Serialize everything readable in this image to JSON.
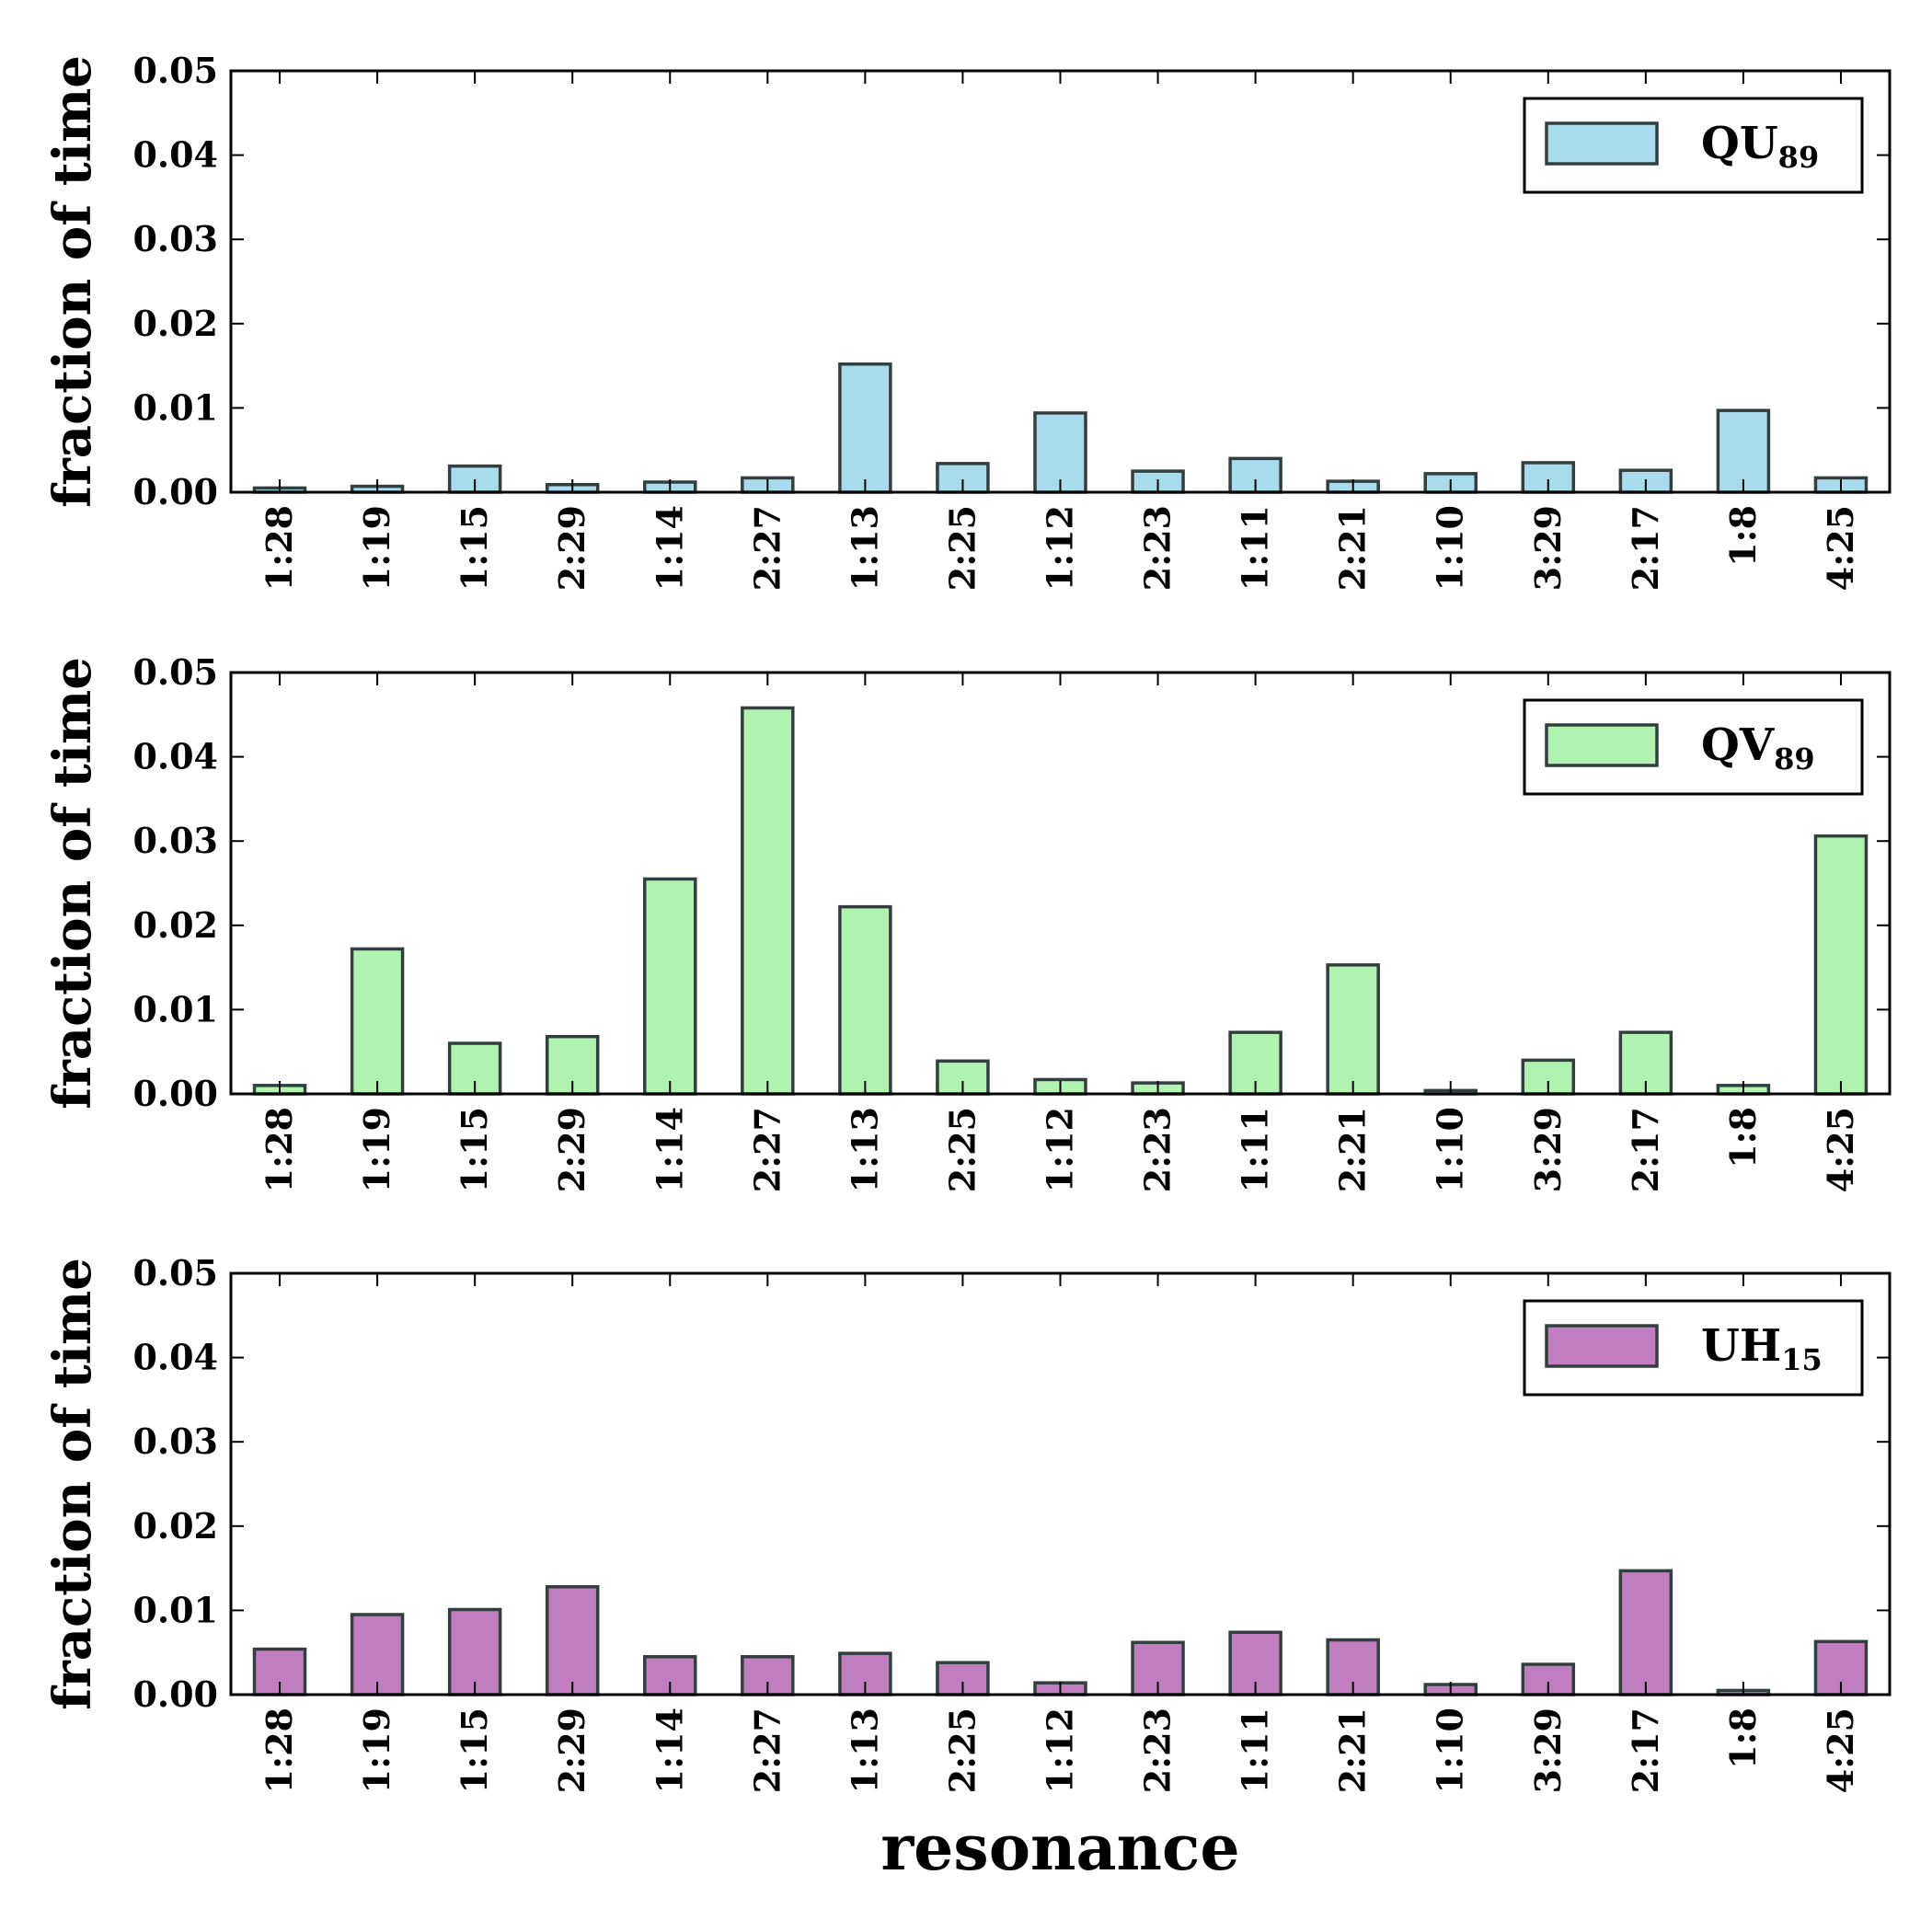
{
  "chart_data": [
    {
      "type": "bar",
      "categories": [
        "1:28",
        "1:19",
        "1:15",
        "2:29",
        "1:14",
        "2:27",
        "1:13",
        "2:25",
        "1:12",
        "2:23",
        "1:11",
        "2:21",
        "1:10",
        "3:29",
        "2:17",
        "1:8",
        "4:25"
      ],
      "series": [
        {
          "name": "QU89",
          "values": [
            0.0005,
            0.0007,
            0.0031,
            0.0009,
            0.0012,
            0.0017,
            0.0152,
            0.0034,
            0.0094,
            0.0025,
            0.004,
            0.0013,
            0.0022,
            0.0035,
            0.0026,
            0.0097,
            0.0017
          ]
        }
      ],
      "legend": {
        "main": "QU",
        "sub": "89"
      },
      "color": "#a8dced",
      "ylabel": "fraction of time",
      "ylim": [
        0,
        0.05
      ],
      "yticks": [
        "0.00",
        "0.01",
        "0.02",
        "0.03",
        "0.04",
        "0.05"
      ],
      "legend_position": "top-right"
    },
    {
      "type": "bar",
      "categories": [
        "1:28",
        "1:19",
        "1:15",
        "2:29",
        "1:14",
        "2:27",
        "1:13",
        "2:25",
        "1:12",
        "2:23",
        "1:11",
        "2:21",
        "1:10",
        "3:29",
        "2:17",
        "1:8",
        "4:25"
      ],
      "series": [
        {
          "name": "QV89",
          "values": [
            0.001,
            0.0172,
            0.006,
            0.0068,
            0.0255,
            0.0458,
            0.0222,
            0.0039,
            0.0017,
            0.0013,
            0.0073,
            0.0153,
            0.0004,
            0.004,
            0.0073,
            0.001,
            0.0306
          ]
        }
      ],
      "legend": {
        "main": "QV",
        "sub": "89"
      },
      "color": "#b0f2b0",
      "ylabel": "fraction of time",
      "ylim": [
        0,
        0.05
      ],
      "yticks": [
        "0.00",
        "0.01",
        "0.02",
        "0.03",
        "0.04",
        "0.05"
      ],
      "legend_position": "top-right"
    },
    {
      "type": "bar",
      "categories": [
        "1:28",
        "1:19",
        "1:15",
        "2:29",
        "1:14",
        "2:27",
        "1:13",
        "2:25",
        "1:12",
        "2:23",
        "1:11",
        "2:21",
        "1:10",
        "3:29",
        "2:17",
        "1:8",
        "4:25"
      ],
      "series": [
        {
          "name": "UH15",
          "values": [
            0.0054,
            0.0095,
            0.0101,
            0.0128,
            0.0045,
            0.0045,
            0.0049,
            0.0038,
            0.0014,
            0.0062,
            0.0074,
            0.0065,
            0.0012,
            0.0036,
            0.0147,
            0.0005,
            0.0063
          ]
        }
      ],
      "legend": {
        "main": "UH",
        "sub": "15"
      },
      "color": "#c07dbf",
      "ylabel": "fraction of time",
      "ylim": [
        0,
        0.05
      ],
      "yticks": [
        "0.00",
        "0.01",
        "0.02",
        "0.03",
        "0.04",
        "0.05"
      ],
      "legend_position": "top-right",
      "xlabel": "resonance"
    }
  ]
}
